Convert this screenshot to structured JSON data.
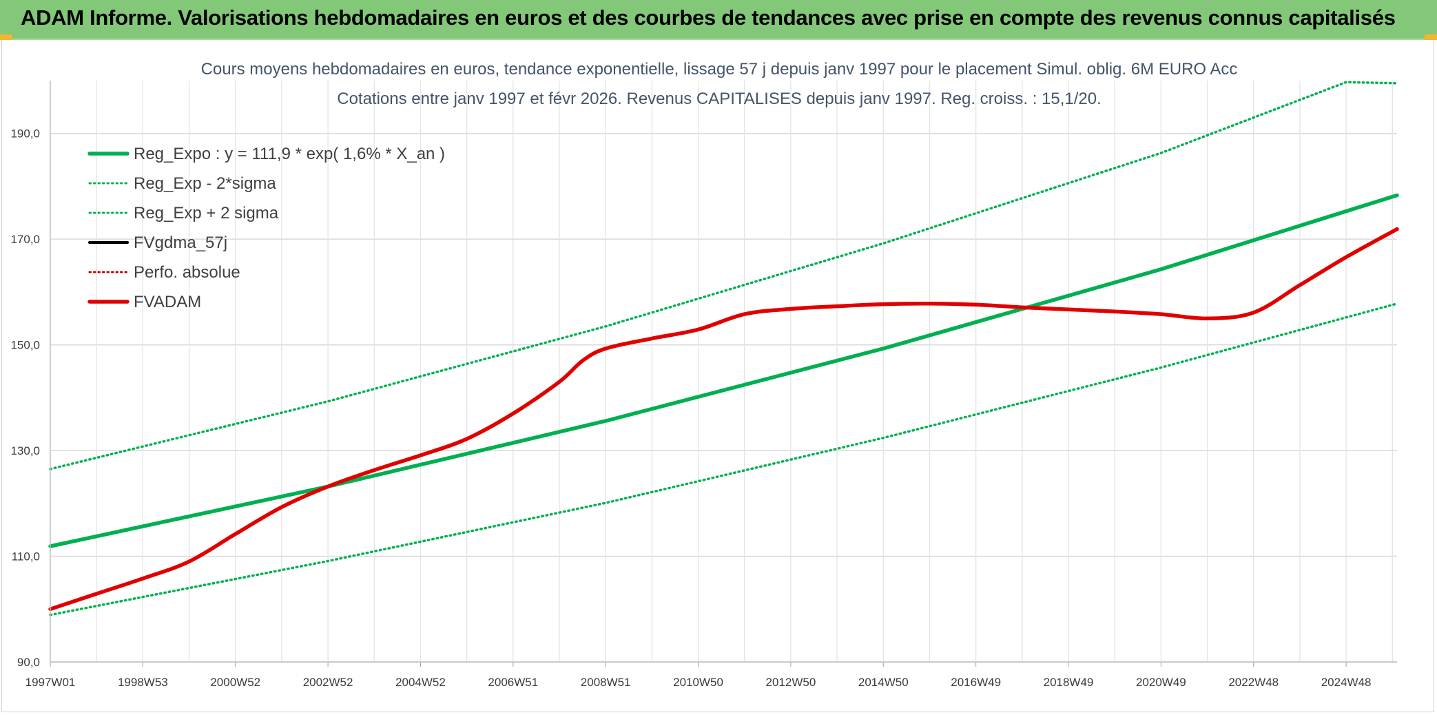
{
  "banner": {
    "title": "ADAM Informe. Valorisations hebdomadaires en euros et des courbes de tendances avec prise en compte des revenus connus capitalisés"
  },
  "colors": {
    "banner_bg": "#82c878",
    "corner_accent": "#f2b632",
    "reg_expo": "#00b050",
    "fvgdma": "#000000",
    "perfo": "#c00000",
    "fvadam": "#e00000",
    "subtitle": "#44546a"
  },
  "chart_data": {
    "type": "line",
    "title_lines": [
      "Cours moyens hebdomadaires en euros, tendance exponentielle, lissage 57 j depuis janv 1997 pour le placement Simul. oblig. 6M EURO Acc",
      "Cotations entre janv 1997 et févr 2026. Revenus CAPITALISES depuis janv 1997. Reg. croiss. : 15,1/20."
    ],
    "xlabel": "",
    "ylabel": "",
    "x_range": [
      1997.0,
      2026.1
    ],
    "ylim": [
      90,
      200
    ],
    "y_ticks": [
      {
        "value": 90,
        "label": "90,0"
      },
      {
        "value": 110,
        "label": "110,0"
      },
      {
        "value": 130,
        "label": "130,0"
      },
      {
        "value": 150,
        "label": "150,0"
      },
      {
        "value": 170,
        "label": "170,0"
      },
      {
        "value": 190,
        "label": "190,0"
      }
    ],
    "x_ticks": [
      {
        "x": 1997.0,
        "label": "1997W01"
      },
      {
        "x": 1999.0,
        "label": "1998W53"
      },
      {
        "x": 2001.0,
        "label": "2000W52"
      },
      {
        "x": 2003.0,
        "label": "2002W52"
      },
      {
        "x": 2005.0,
        "label": "2004W52"
      },
      {
        "x": 2007.0,
        "label": "2006W51"
      },
      {
        "x": 2009.0,
        "label": "2008W51"
      },
      {
        "x": 2011.0,
        "label": "2010W50"
      },
      {
        "x": 2013.0,
        "label": "2012W50"
      },
      {
        "x": 2015.0,
        "label": "2014W50"
      },
      {
        "x": 2017.0,
        "label": "2016W49"
      },
      {
        "x": 2019.0,
        "label": "2018W49"
      },
      {
        "x": 2021.0,
        "label": "2020W49"
      },
      {
        "x": 2023.0,
        "label": "2022W48"
      },
      {
        "x": 2025.0,
        "label": "2024W48"
      }
    ],
    "grid": true,
    "legend_position": "top-left",
    "series": [
      {
        "name": "Reg_Expo : y = 111,9 * exp( 1,6% *  X_an )",
        "style": "solid-thick",
        "color": "#00b050",
        "points": [
          [
            1997.0,
            111.9
          ],
          [
            2003.0,
            123.2
          ],
          [
            2009.0,
            135.6
          ],
          [
            2015.0,
            149.3
          ],
          [
            2021.0,
            164.3
          ],
          [
            2026.1,
            178.3
          ]
        ]
      },
      {
        "name": "Reg_Exp - 2*sigma",
        "style": "dotted",
        "color": "#00b050",
        "points": [
          [
            1997.0,
            98.9
          ],
          [
            2003.0,
            109.1
          ],
          [
            2009.0,
            120.1
          ],
          [
            2015.0,
            132.4
          ],
          [
            2021.0,
            145.7
          ],
          [
            2026.1,
            157.8
          ]
        ]
      },
      {
        "name": "Reg_Exp + 2 sigma",
        "style": "dotted",
        "color": "#00b050",
        "points": [
          [
            1997.0,
            126.5
          ],
          [
            2003.0,
            139.3
          ],
          [
            2009.0,
            153.5
          ],
          [
            2015.0,
            169.2
          ],
          [
            2021.0,
            186.3
          ],
          [
            2025.0,
            199.7
          ],
          [
            2026.1,
            199.5
          ]
        ]
      },
      {
        "name": "FVgdma_57j",
        "style": "solid",
        "color": "#000000",
        "points": []
      },
      {
        "name": "Perfo. absolue",
        "style": "dotted",
        "color": "#c00000",
        "points": []
      },
      {
        "name": "FVADAM",
        "style": "solid-thick",
        "color": "#e00000",
        "points": [
          [
            1997.0,
            100.0
          ],
          [
            1998.0,
            102.9
          ],
          [
            1999.0,
            105.8
          ],
          [
            2000.0,
            109.0
          ],
          [
            2001.0,
            114.2
          ],
          [
            2002.0,
            119.3
          ],
          [
            2003.0,
            123.2
          ],
          [
            2004.0,
            126.3
          ],
          [
            2005.0,
            129.1
          ],
          [
            2006.0,
            132.2
          ],
          [
            2007.0,
            137.0
          ],
          [
            2008.0,
            143.0
          ],
          [
            2008.5,
            147.0
          ],
          [
            2009.0,
            149.3
          ],
          [
            2010.0,
            151.2
          ],
          [
            2011.0,
            152.9
          ],
          [
            2012.0,
            155.8
          ],
          [
            2013.0,
            156.8
          ],
          [
            2014.0,
            157.3
          ],
          [
            2015.0,
            157.7
          ],
          [
            2016.0,
            157.8
          ],
          [
            2017.0,
            157.6
          ],
          [
            2018.0,
            157.1
          ],
          [
            2019.0,
            156.7
          ],
          [
            2020.0,
            156.3
          ],
          [
            2021.0,
            155.8
          ],
          [
            2022.0,
            155.0
          ],
          [
            2023.0,
            156.1
          ],
          [
            2024.0,
            161.3
          ],
          [
            2025.0,
            166.6
          ],
          [
            2026.1,
            171.9
          ]
        ]
      }
    ]
  }
}
